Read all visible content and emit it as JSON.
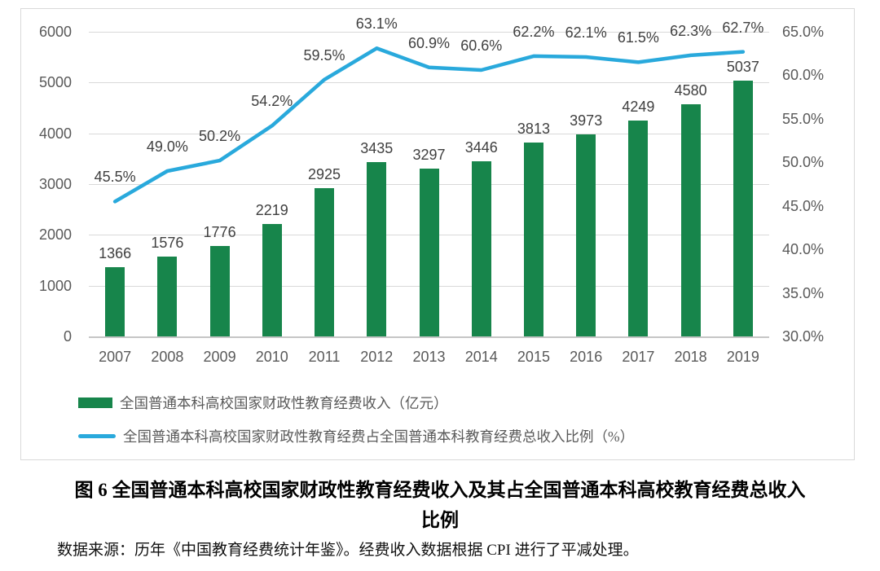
{
  "chart_data": {
    "type": "bar",
    "combo": "bar+line",
    "categories": [
      "2007",
      "2008",
      "2009",
      "2010",
      "2011",
      "2012",
      "2013",
      "2014",
      "2015",
      "2016",
      "2017",
      "2018",
      "2019"
    ],
    "series": [
      {
        "name": "全国普通本科高校国家财政性教育经费收入（亿元）",
        "type": "bar",
        "axis": "left",
        "values": [
          1366,
          1576,
          1776,
          2219,
          2925,
          3435,
          3297,
          3446,
          3813,
          3973,
          4249,
          4580,
          5037
        ]
      },
      {
        "name": "全国普通本科高校国家财政性教育经费占全国普通本科教育经费总收入比例（%）",
        "type": "line",
        "axis": "right",
        "values": [
          45.5,
          49.0,
          50.2,
          54.2,
          59.5,
          63.1,
          60.9,
          60.6,
          62.2,
          62.1,
          61.5,
          62.3,
          62.7
        ],
        "labels": [
          "45.5%",
          "49.0%",
          "50.2%",
          "54.2%",
          "59.5%",
          "63.1%",
          "60.9%",
          "60.6%",
          "62.2%",
          "62.1%",
          "61.5%",
          "62.3%",
          "62.7%"
        ]
      }
    ],
    "left_axis": {
      "min": 0,
      "max": 6000,
      "ticks": [
        "6000",
        "5000",
        "4000",
        "3000",
        "2000",
        "1000",
        "0"
      ]
    },
    "right_axis": {
      "min": 30,
      "max": 65,
      "ticks": [
        "65.0%",
        "60.0%",
        "55.0%",
        "50.0%",
        "45.0%",
        "40.0%",
        "35.0%",
        "30.0%"
      ]
    },
    "grid": true,
    "legend_position": "bottom-left",
    "title": "图 6 全国普通本科高校国家财政性教育经费收入及其占全国普通本科高校教育经费总收入比例"
  },
  "colors": {
    "bar": "#17854B",
    "line": "#29A9DC",
    "axis_text": "#595959",
    "data_label": "#404040",
    "gridline": "#D9D9D9",
    "border": "#D9D9D9"
  },
  "caption": {
    "title": "图 6 全国普通本科高校国家财政性教育经费收入及其占全国普通本科高校教育经费总收入比例",
    "source": "数据来源：历年《中国教育经费统计年鉴》。经费收入数据根据 CPI 进行了平减处理。"
  }
}
